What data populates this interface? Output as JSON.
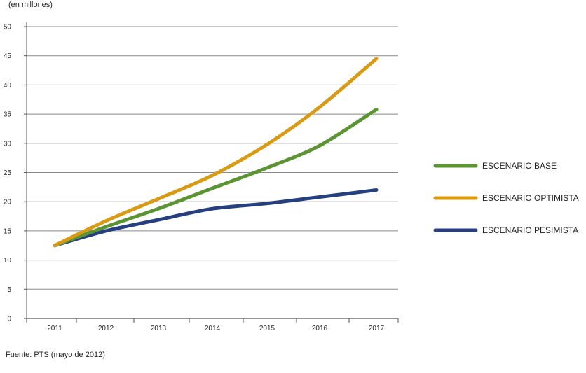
{
  "chart_data": {
    "type": "line",
    "title": "",
    "ylabel": "(en millones)",
    "xlabel": "",
    "x": [
      "2011",
      "2012",
      "2013",
      "2014",
      "2015",
      "2016",
      "2017"
    ],
    "ylim": [
      0,
      50
    ],
    "yticks": [
      0,
      5,
      10,
      15,
      20,
      25,
      30,
      35,
      40,
      45,
      50
    ],
    "grid": "horizontal",
    "legend_position": "right",
    "series": [
      {
        "name": "ESCENARIO BASE",
        "color": "#5b9432",
        "values": [
          12.5,
          15.7,
          18.8,
          22.3,
          25.8,
          29.6,
          35.8
        ]
      },
      {
        "name": "ESCENARIO OPTIMISTA",
        "color": "#d99a14",
        "values": [
          12.5,
          16.7,
          20.5,
          24.5,
          29.8,
          36.2,
          44.5
        ]
      },
      {
        "name": "ESCENARIO PESIMISTA",
        "color": "#263f80",
        "values": [
          12.5,
          15.0,
          16.9,
          18.8,
          19.7,
          20.8,
          22.0
        ]
      }
    ],
    "source": "Fuente: PTS (mayo de 2012)"
  }
}
